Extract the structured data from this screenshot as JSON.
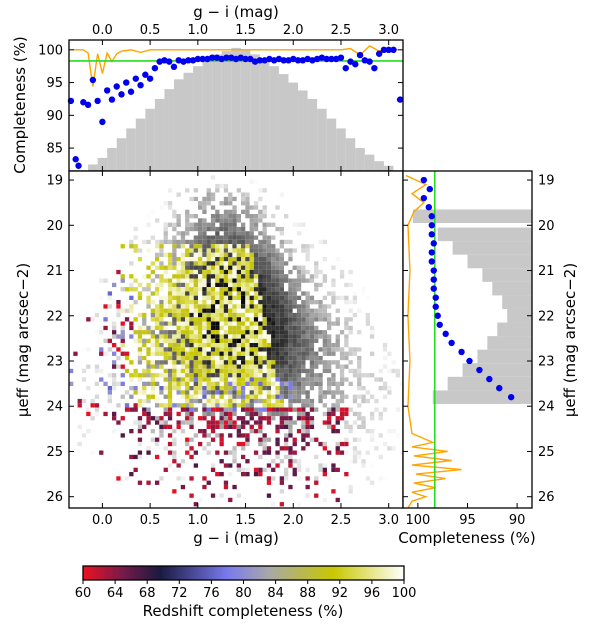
{
  "chart_data": [
    {
      "panel": "top-histogram",
      "type": "scatter",
      "xlabel": "g − i (mag)",
      "ylabel": "Completeness (%)",
      "xlim": [
        -0.35,
        3.15
      ],
      "ylim": [
        81.5,
        101.5
      ],
      "x_ticks": [
        "0.0",
        "0.5",
        "1.0",
        "1.5",
        "2.0",
        "2.5",
        "3.0"
      ],
      "y_ticks": [
        "85",
        "90",
        "95",
        "100"
      ],
      "reference_line": {
        "y": 98.3,
        "color": "#22dd22"
      },
      "histogram_color": "#c8c8c8",
      "line_color": "#ffa500",
      "point_color": "#0000ee",
      "histogram": {
        "x": [
          -0.1,
          0.0,
          0.1,
          0.2,
          0.3,
          0.4,
          0.5,
          0.6,
          0.7,
          0.8,
          0.9,
          1.0,
          1.1,
          1.2,
          1.3,
          1.4,
          1.5,
          1.6,
          1.7,
          1.8,
          1.9,
          2.0,
          2.1,
          2.2,
          2.3,
          2.4,
          2.5,
          2.6,
          2.7,
          2.8,
          2.9,
          3.0
        ],
        "y": [
          82.5,
          83.5,
          85,
          86.5,
          88,
          89.5,
          91,
          92.5,
          94,
          95.5,
          96.5,
          97.5,
          98.5,
          99.3,
          99.8,
          100.3,
          100,
          99.3,
          98.5,
          97.5,
          96.3,
          95,
          93.8,
          92.5,
          91,
          89.5,
          88,
          86.5,
          85,
          84,
          83,
          82.3
        ]
      },
      "points": {
        "x": [
          -0.33,
          -0.28,
          -0.25,
          -0.2,
          -0.15,
          -0.1,
          -0.05,
          0.0,
          0.05,
          0.1,
          0.15,
          0.2,
          0.25,
          0.3,
          0.35,
          0.4,
          0.45,
          0.5,
          0.55,
          0.6,
          0.65,
          0.7,
          0.75,
          0.8,
          0.85,
          0.9,
          0.95,
          1.0,
          1.05,
          1.1,
          1.15,
          1.2,
          1.25,
          1.3,
          1.35,
          1.4,
          1.45,
          1.5,
          1.55,
          1.6,
          1.65,
          1.7,
          1.75,
          1.8,
          1.85,
          1.9,
          1.95,
          2.0,
          2.05,
          2.1,
          2.15,
          2.2,
          2.25,
          2.3,
          2.35,
          2.4,
          2.45,
          2.5,
          2.55,
          2.6,
          2.65,
          2.7,
          2.75,
          2.8,
          2.85,
          2.9,
          2.95,
          3.0,
          3.05,
          3.12
        ],
        "y": [
          92.2,
          83.3,
          82.3,
          92,
          91.6,
          95.4,
          92.2,
          89,
          93.8,
          92.4,
          94.4,
          93.2,
          95,
          93.6,
          95.6,
          94.6,
          96.2,
          95.6,
          97.2,
          98.2,
          98.4,
          98.2,
          97.4,
          98.4,
          98.2,
          98.4,
          98.4,
          98.6,
          98.6,
          98.6,
          98.8,
          98.8,
          98.6,
          98.8,
          98.8,
          98.6,
          98.8,
          98.6,
          98.6,
          98.2,
          98.4,
          98.4,
          98.6,
          98.4,
          98.6,
          98.4,
          98.4,
          98.6,
          98.4,
          98.4,
          98.6,
          98.4,
          98.6,
          98.8,
          98.6,
          98.6,
          98.6,
          98.8,
          97.2,
          98.2,
          97.8,
          99.2,
          98.4,
          98.2,
          97.2,
          99.4,
          100,
          100,
          100,
          92.4
        ]
      },
      "orange_line": {
        "x": [
          -0.3,
          -0.2,
          -0.15,
          -0.1,
          -0.05,
          0.0,
          0.05,
          0.1,
          0.15,
          0.2,
          0.3,
          0.4,
          0.5,
          0.6,
          0.8,
          1.0,
          1.5,
          2.0,
          2.5,
          2.6,
          2.7,
          2.8,
          2.9,
          3.0,
          3.1
        ],
        "y": [
          100,
          100,
          99.5,
          94.4,
          99.4,
          96.4,
          99.5,
          98.2,
          99.4,
          99.8,
          100,
          99.6,
          100,
          100,
          100,
          100,
          100,
          100,
          100,
          100.2,
          99.2,
          100.6,
          99.8,
          100.2,
          100
        ]
      }
    },
    {
      "panel": "main-density",
      "type": "heatmap",
      "xlabel": "g − i (mag)",
      "ylabel": "μeff (mag arcsec−2)",
      "xlim": [
        -0.35,
        3.15
      ],
      "ylim": [
        26.25,
        18.8
      ],
      "x_ticks": [
        "0.0",
        "0.5",
        "1.0",
        "1.5",
        "2.0",
        "2.5",
        "3.0"
      ],
      "y_ticks": [
        "19",
        "20",
        "21",
        "22",
        "23",
        "24",
        "25",
        "26"
      ],
      "description_values": "grey scale = galaxy counts; colored cells = redshift completeness"
    },
    {
      "panel": "right-histogram",
      "type": "scatter",
      "xlabel": "Completeness (%)",
      "ylabel": "μeff (mag arcsec−2)",
      "xlim": [
        101.5,
        88.5
      ],
      "ylim": [
        26.25,
        18.8
      ],
      "x_ticks": [
        "100",
        "95",
        "90"
      ],
      "y_ticks": [
        "19",
        "20",
        "21",
        "22",
        "23",
        "24",
        "25",
        "26"
      ],
      "reference_line": {
        "x": 98.3,
        "color": "#22dd22"
      },
      "histogram": {
        "y": [
          19.8,
          20.2,
          20.5,
          20.8,
          21.1,
          21.4,
          21.7,
          22.0,
          22.3,
          22.6,
          22.9,
          23.2,
          23.5,
          23.8
        ],
        "x": [
          100.5,
          98,
          96.5,
          95,
          93.5,
          92.5,
          91.5,
          91,
          92,
          93,
          94,
          95.5,
          97,
          98.5
        ]
      },
      "points": {
        "y": [
          19.0,
          19.2,
          19.4,
          19.6,
          19.8,
          20.0,
          20.2,
          20.4,
          20.6,
          20.8,
          21.0,
          21.2,
          21.4,
          21.6,
          21.8,
          22.0,
          22.2,
          22.4,
          22.6,
          22.8,
          23.0,
          23.2,
          23.4,
          23.6,
          23.8
        ],
        "x": [
          99.4,
          98.8,
          99.4,
          98.9,
          98.6,
          98.6,
          98.6,
          98.4,
          98.6,
          98.6,
          98.4,
          98.4,
          98.4,
          98.2,
          98.2,
          98.0,
          97.8,
          97.2,
          96.6,
          95.6,
          94.8,
          93.8,
          92.8,
          91.8,
          90.6
        ]
      }
    },
    {
      "panel": "colorbar",
      "type": "heatmap",
      "xlabel": "Redshift completeness (%)",
      "range": [
        60,
        100
      ],
      "ticks": [
        "60",
        "64",
        "68",
        "72",
        "76",
        "80",
        "84",
        "88",
        "92",
        "96",
        "100"
      ],
      "colors": [
        "#ee1122",
        "#1a1a40",
        "#7a7aee",
        "#a0a0a0",
        "#c8c800",
        "#ffffff"
      ]
    }
  ]
}
